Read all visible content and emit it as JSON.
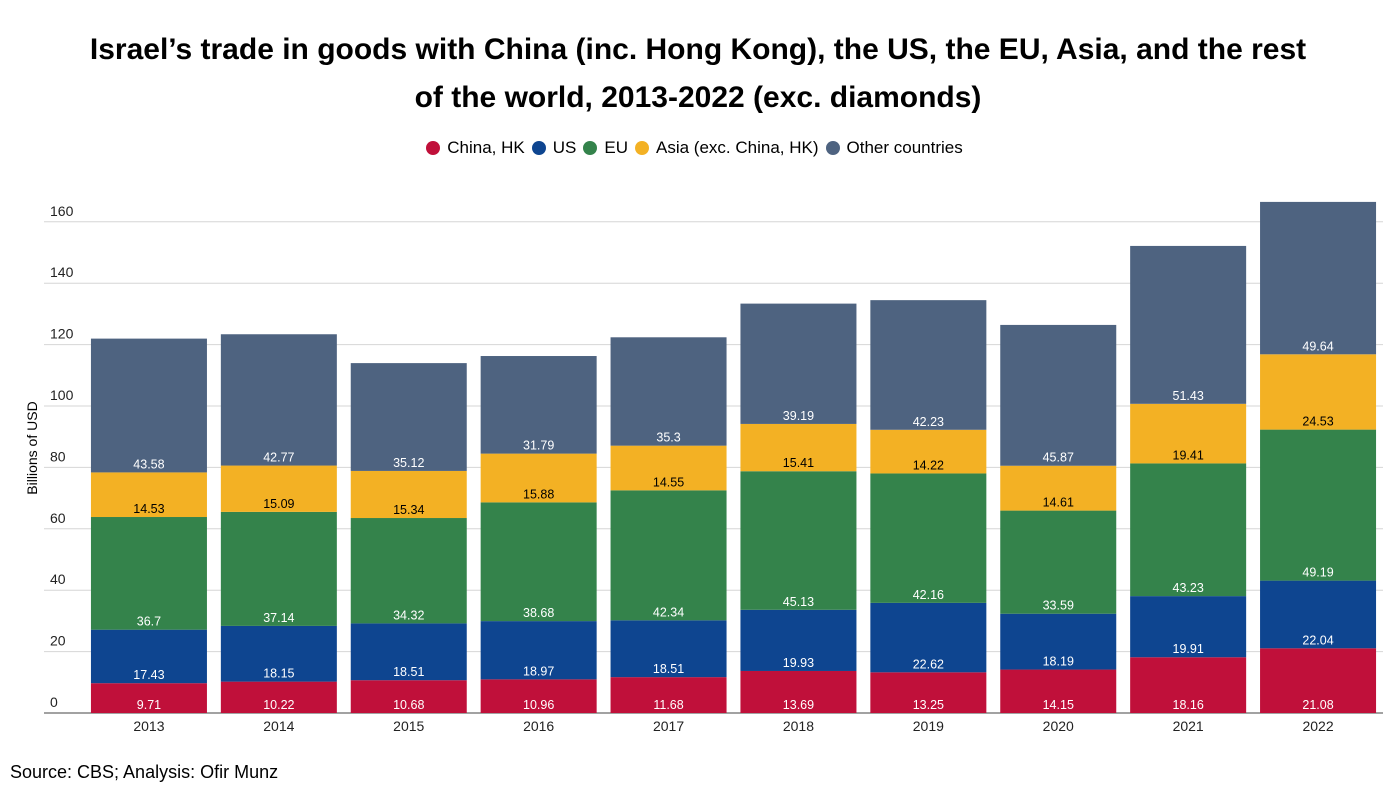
{
  "title_line1": "Israel’s trade in goods with China (inc. Hong Kong), the US, the EU, Asia, and the rest",
  "title_line2": "of the world, 2013-2022 (exc. diamonds)",
  "source": "Source: CBS; Analysis: Ofir Munz",
  "chart_data": {
    "type": "bar",
    "stacked": true,
    "title": "Israel’s trade in goods with China (inc. Hong Kong), the US, the EU, Asia, and the rest of the world, 2013-2022 (exc. diamonds)",
    "xlabel": "",
    "ylabel": "Billions of USD",
    "ylim": [
      0,
      160
    ],
    "yticks": [
      0,
      20,
      40,
      60,
      80,
      100,
      120,
      140,
      160
    ],
    "grid": true,
    "legend_position": "top-center",
    "categories": [
      "2013",
      "2014",
      "2015",
      "2016",
      "2017",
      "2018",
      "2019",
      "2020",
      "2021",
      "2022"
    ],
    "series": [
      {
        "name": "China, HK",
        "color": "#c0103a",
        "label_color": "#ffffff",
        "values": [
          9.71,
          10.22,
          10.68,
          10.96,
          11.68,
          13.69,
          13.25,
          14.15,
          18.16,
          21.08
        ]
      },
      {
        "name": "US",
        "color": "#0e4590",
        "label_color": "#ffffff",
        "values": [
          17.43,
          18.15,
          18.51,
          18.97,
          18.51,
          19.93,
          22.62,
          18.19,
          19.91,
          22.04
        ]
      },
      {
        "name": "EU",
        "color": "#34834b",
        "label_color": "#ffffff",
        "values": [
          36.7,
          37.14,
          34.32,
          38.68,
          42.34,
          45.13,
          42.16,
          33.59,
          43.23,
          49.19
        ]
      },
      {
        "name": "Asia (exc. China, HK)",
        "color": "#f3b124",
        "label_color": "#000000",
        "values": [
          14.53,
          15.09,
          15.34,
          15.88,
          14.55,
          15.41,
          14.22,
          14.61,
          19.41,
          24.53
        ]
      },
      {
        "name": "Other countries",
        "color": "#4e6380",
        "label_color": "#ffffff",
        "values": [
          43.58,
          42.77,
          35.12,
          31.79,
          35.3,
          39.19,
          42.23,
          45.87,
          51.43,
          49.64
        ]
      }
    ]
  }
}
